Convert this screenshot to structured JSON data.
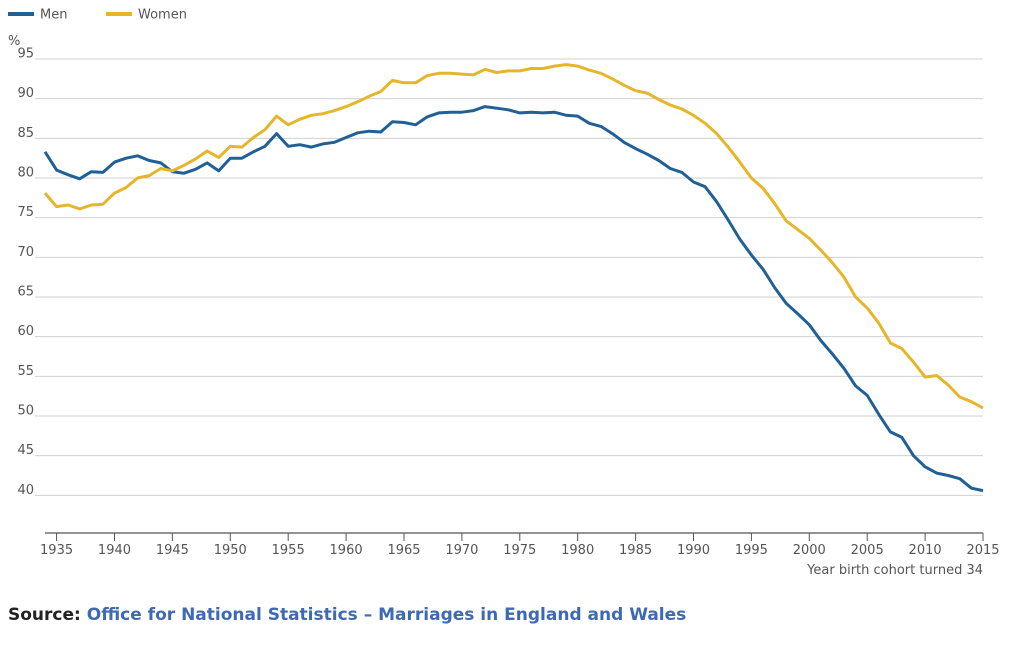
{
  "chart_data": {
    "type": "line",
    "y_label": "%",
    "x_label": "Year birth cohort turned 34",
    "x": [
      1934,
      1935,
      1936,
      1937,
      1938,
      1939,
      1940,
      1941,
      1942,
      1943,
      1944,
      1945,
      1946,
      1947,
      1948,
      1949,
      1950,
      1951,
      1952,
      1953,
      1954,
      1955,
      1956,
      1957,
      1958,
      1959,
      1960,
      1961,
      1962,
      1963,
      1964,
      1965,
      1966,
      1967,
      1968,
      1969,
      1970,
      1971,
      1972,
      1973,
      1974,
      1975,
      1976,
      1977,
      1978,
      1979,
      1980,
      1981,
      1982,
      1983,
      1984,
      1985,
      1986,
      1987,
      1988,
      1989,
      1990,
      1991,
      1992,
      1993,
      1994,
      1995,
      1996,
      1997,
      1998,
      1999,
      2000,
      2001,
      2002,
      2003,
      2004,
      2005,
      2006,
      2007,
      2008,
      2009,
      2010,
      2011,
      2012,
      2013,
      2014,
      2015
    ],
    "series": [
      {
        "name": "Men",
        "color": "#206095",
        "values": [
          83.3,
          81.0,
          80.4,
          79.9,
          80.8,
          80.7,
          82.0,
          82.5,
          82.8,
          82.2,
          81.9,
          80.8,
          80.6,
          81.1,
          81.9,
          80.9,
          82.5,
          82.5,
          83.3,
          84.0,
          85.6,
          84.0,
          84.2,
          83.9,
          84.3,
          84.5,
          85.1,
          85.7,
          85.9,
          85.8,
          87.1,
          87.0,
          86.7,
          87.7,
          88.2,
          88.3,
          88.3,
          88.5,
          89.0,
          88.8,
          88.6,
          88.2,
          88.3,
          88.2,
          88.3,
          87.9,
          87.8,
          86.9,
          86.5,
          85.6,
          84.5,
          83.7,
          83.0,
          82.2,
          81.2,
          80.7,
          79.5,
          78.9,
          77.0,
          74.7,
          72.3,
          70.3,
          68.5,
          66.2,
          64.2,
          62.9,
          61.5,
          59.5,
          57.8,
          56.0,
          53.8,
          52.6,
          50.2,
          48.0,
          47.3,
          45.0,
          43.6,
          42.8,
          42.5,
          42.1,
          40.9,
          40.6
        ]
      },
      {
        "name": "Women",
        "color": "#e5b62a",
        "values": [
          78.1,
          76.4,
          76.6,
          76.1,
          76.6,
          76.7,
          78.1,
          78.8,
          80.0,
          80.3,
          81.2,
          80.9,
          81.6,
          82.4,
          83.4,
          82.6,
          84.0,
          83.9,
          85.1,
          86.1,
          87.8,
          86.7,
          87.4,
          87.9,
          88.1,
          88.5,
          89.0,
          89.6,
          90.3,
          90.9,
          92.3,
          92.0,
          92.0,
          92.9,
          93.2,
          93.2,
          93.1,
          93.0,
          93.7,
          93.3,
          93.5,
          93.5,
          93.8,
          93.8,
          94.1,
          94.3,
          94.1,
          93.6,
          93.2,
          92.5,
          91.7,
          91.0,
          90.7,
          89.9,
          89.2,
          88.7,
          87.9,
          86.9,
          85.6,
          83.9,
          82.0,
          80.0,
          78.7,
          76.8,
          74.6,
          73.5,
          72.4,
          70.9,
          69.3,
          67.5,
          65.0,
          63.6,
          61.7,
          59.2,
          58.5,
          56.8,
          54.9,
          55.1,
          53.9,
          52.4,
          51.8,
          51.0
        ]
      }
    ],
    "xlim": [
      1934,
      2015
    ],
    "xticks": [
      1935,
      1940,
      1945,
      1950,
      1955,
      1960,
      1965,
      1970,
      1975,
      1980,
      1985,
      1990,
      1995,
      2000,
      2005,
      2010,
      2015
    ],
    "ylim": [
      35,
      95
    ],
    "yticks": [
      40,
      45,
      50,
      55,
      60,
      65,
      70,
      75,
      80,
      85,
      90,
      95
    ],
    "grid": true,
    "legend": "top-left"
  },
  "source": {
    "label": "Source:",
    "text": "Office for National Statistics – Marriages in England and Wales"
  }
}
